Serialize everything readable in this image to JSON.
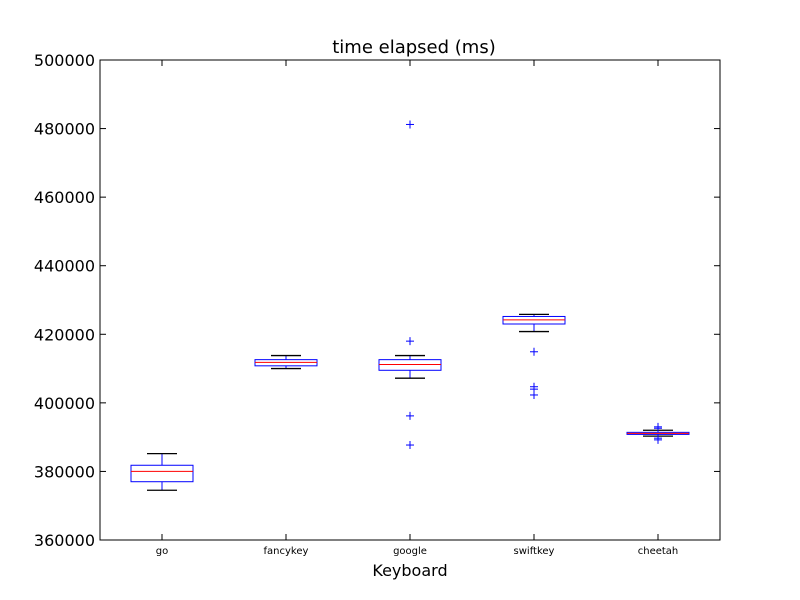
{
  "chart_data": {
    "type": "box",
    "title": "time elapsed (ms)",
    "xlabel": "Keyboard",
    "ylabel": "",
    "ylim": [
      360000,
      500000
    ],
    "yticks": [
      360000,
      380000,
      400000,
      420000,
      440000,
      460000,
      480000,
      500000
    ],
    "ytick_labels": [
      "360000",
      "380000",
      "400000",
      "420000",
      "440000",
      "460000",
      "480000",
      "500000"
    ],
    "categories": [
      "go",
      "fancykey",
      "google",
      "swiftkey",
      "cheetah"
    ],
    "grid": false,
    "colors": {
      "box": "#0000ff",
      "median": "#ff0000",
      "whisker": "#000000",
      "flier": "#0000ff"
    },
    "boxes": [
      {
        "name": "go",
        "whisker_low": 374500,
        "q1": 377000,
        "median": 380000,
        "q3": 381800,
        "whisker_high": 385200,
        "fliers": []
      },
      {
        "name": "fancykey",
        "whisker_low": 410000,
        "q1": 410800,
        "median": 411800,
        "q3": 412600,
        "whisker_high": 413800,
        "fliers": []
      },
      {
        "name": "google",
        "whisker_low": 407200,
        "q1": 409500,
        "median": 411200,
        "q3": 412600,
        "whisker_high": 413800,
        "fliers": [
          387700,
          396200,
          418000,
          481200
        ]
      },
      {
        "name": "swiftkey",
        "whisker_low": 420800,
        "q1": 423000,
        "median": 424200,
        "q3": 425200,
        "whisker_high": 425800,
        "fliers": [
          402300,
          404000,
          404700,
          414900
        ]
      },
      {
        "name": "cheetah",
        "whisker_low": 390300,
        "q1": 390800,
        "median": 391100,
        "q3": 391400,
        "whisker_high": 392000,
        "fliers": [
          389200,
          389700,
          392600,
          393000
        ]
      }
    ]
  }
}
